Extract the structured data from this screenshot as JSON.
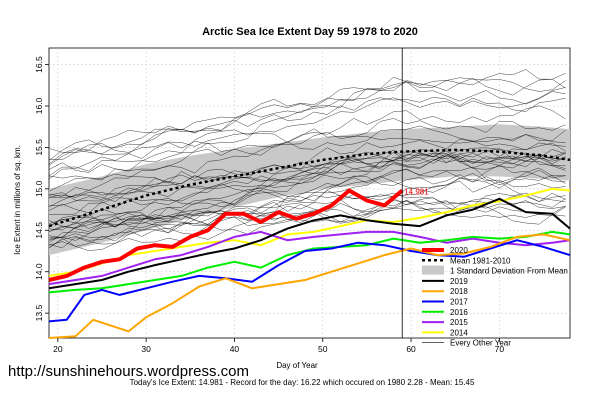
{
  "chart_data": {
    "type": "line",
    "title": "Arctic Sea Ice Extent Day 59 1978 to 2020",
    "xlabel": "Day of Year",
    "ylabel": "Ice Extent in millions of sq. km.",
    "xlim": [
      19,
      78
    ],
    "ylim": [
      13.2,
      16.7
    ],
    "x_ticks": [
      20,
      30,
      40,
      50,
      60,
      70
    ],
    "y_ticks": [
      13.5,
      14.0,
      14.5,
      15.0,
      15.5,
      16.0,
      16.5
    ],
    "grid": true,
    "marker_day": 59,
    "current_value_label": "14.981",
    "source_url": "http://sunshinehours.wordpress.com",
    "footer": "Today's Ice Extent: 14.981  - Record for the day: 16.22 which occured on 1980 2.28  - Mean: 15.45",
    "legend_position": "bottom-right",
    "legend": [
      {
        "label": "2020",
        "color": "#ff0000",
        "style": "thick"
      },
      {
        "label": "Mean 1981-2010",
        "color": "#000000",
        "style": "dotted"
      },
      {
        "label": "1 Standard Deviation From Mean",
        "color": "#c8c8c8",
        "style": "box"
      },
      {
        "label": "2019",
        "color": "#000000",
        "style": "line"
      },
      {
        "label": "2018",
        "color": "#ffa500",
        "style": "line"
      },
      {
        "label": "2017",
        "color": "#0000ff",
        "style": "line"
      },
      {
        "label": "2016",
        "color": "#00ee00",
        "style": "line"
      },
      {
        "label": "2015",
        "color": "#a020f0",
        "style": "line"
      },
      {
        "label": "2014",
        "color": "#ffff00",
        "style": "line"
      },
      {
        "label": "Every Other Year",
        "color": "#000000",
        "style": "thin"
      }
    ],
    "mean": {
      "x": [
        19,
        25,
        30,
        35,
        40,
        45,
        50,
        55,
        59,
        65,
        70,
        75,
        78
      ],
      "values": [
        14.55,
        14.75,
        14.92,
        15.05,
        15.15,
        15.25,
        15.35,
        15.42,
        15.45,
        15.47,
        15.45,
        15.4,
        15.35
      ]
    },
    "std_band": {
      "x": [
        19,
        25,
        30,
        35,
        40,
        45,
        50,
        55,
        59,
        65,
        70,
        75,
        78
      ],
      "upper": [
        15.0,
        15.15,
        15.3,
        15.4,
        15.48,
        15.55,
        15.62,
        15.68,
        15.72,
        15.75,
        15.78,
        15.75,
        15.72
      ],
      "lower": [
        14.2,
        14.35,
        14.5,
        14.65,
        14.78,
        14.9,
        15.0,
        15.05,
        15.1,
        15.15,
        15.15,
        15.12,
        15.1
      ]
    },
    "series": [
      {
        "name": "2020",
        "color": "#ff0000",
        "width": 4,
        "x": [
          19,
          21,
          23,
          25,
          27,
          29,
          31,
          33,
          35,
          37,
          39,
          41,
          43,
          45,
          47,
          49,
          51,
          53,
          55,
          57,
          59
        ],
        "values": [
          13.9,
          13.95,
          14.05,
          14.12,
          14.15,
          14.28,
          14.32,
          14.3,
          14.42,
          14.5,
          14.7,
          14.7,
          14.6,
          14.72,
          14.64,
          14.7,
          14.8,
          14.98,
          14.86,
          14.8,
          14.98
        ]
      },
      {
        "name": "2019",
        "color": "#000000",
        "width": 2,
        "x": [
          19,
          22,
          25,
          28,
          31,
          34,
          37,
          40,
          43,
          46,
          49,
          52,
          55,
          58,
          61,
          64,
          67,
          70,
          73,
          76,
          78
        ],
        "values": [
          13.8,
          13.85,
          13.9,
          14.0,
          14.08,
          14.15,
          14.22,
          14.28,
          14.38,
          14.52,
          14.62,
          14.68,
          14.62,
          14.58,
          14.55,
          14.68,
          14.75,
          14.88,
          14.72,
          14.7,
          14.52
        ]
      },
      {
        "name": "2018",
        "color": "#ffa500",
        "width": 2,
        "x": [
          19,
          22,
          24,
          26,
          28,
          30,
          33,
          36,
          39,
          42,
          45,
          48,
          51,
          54,
          57,
          60,
          63,
          66,
          69,
          72,
          75,
          78
        ],
        "values": [
          13.2,
          13.22,
          13.42,
          13.35,
          13.28,
          13.45,
          13.62,
          13.82,
          13.92,
          13.8,
          13.85,
          13.9,
          14.0,
          14.1,
          14.2,
          14.28,
          14.2,
          14.22,
          14.3,
          14.42,
          14.45,
          14.38
        ]
      },
      {
        "name": "2017",
        "color": "#0000ff",
        "width": 2,
        "x": [
          19,
          21,
          23,
          25,
          27,
          30,
          33,
          36,
          39,
          42,
          45,
          48,
          51,
          54,
          57,
          60,
          63,
          66,
          69,
          72,
          75,
          78
        ],
        "values": [
          13.4,
          13.42,
          13.72,
          13.78,
          13.72,
          13.8,
          13.88,
          13.95,
          13.92,
          13.88,
          14.08,
          14.25,
          14.28,
          14.35,
          14.32,
          14.25,
          14.2,
          14.18,
          14.28,
          14.38,
          14.3,
          14.2
        ]
      },
      {
        "name": "2016",
        "color": "#00ee00",
        "width": 2,
        "x": [
          19,
          22,
          25,
          28,
          31,
          34,
          37,
          40,
          43,
          46,
          49,
          52,
          55,
          58,
          61,
          64,
          67,
          70,
          73,
          76,
          78
        ],
        "values": [
          13.75,
          13.78,
          13.8,
          13.85,
          13.9,
          13.95,
          14.05,
          14.12,
          14.05,
          14.2,
          14.28,
          14.3,
          14.32,
          14.4,
          14.35,
          14.38,
          14.42,
          14.4,
          14.42,
          14.48,
          14.45
        ]
      },
      {
        "name": "2015",
        "color": "#a020f0",
        "width": 2,
        "x": [
          19,
          22,
          25,
          28,
          31,
          34,
          37,
          40,
          43,
          46,
          49,
          52,
          55,
          58,
          61,
          64,
          67,
          70,
          73,
          76,
          78
        ],
        "values": [
          13.85,
          13.9,
          13.95,
          14.05,
          14.15,
          14.2,
          14.3,
          14.42,
          14.48,
          14.38,
          14.42,
          14.45,
          14.48,
          14.48,
          14.42,
          14.35,
          14.4,
          14.35,
          14.32,
          14.35,
          14.38
        ]
      },
      {
        "name": "2014",
        "color": "#ffff00",
        "width": 2,
        "x": [
          19,
          22,
          25,
          28,
          31,
          34,
          37,
          40,
          43,
          46,
          49,
          52,
          55,
          58,
          61,
          64,
          67,
          70,
          73,
          76,
          78
        ],
        "values": [
          13.95,
          14.0,
          14.1,
          14.2,
          14.25,
          14.3,
          14.35,
          14.38,
          14.32,
          14.45,
          14.48,
          14.55,
          14.62,
          14.6,
          14.65,
          14.72,
          14.8,
          14.85,
          14.92,
          15.0,
          14.98
        ]
      }
    ]
  }
}
